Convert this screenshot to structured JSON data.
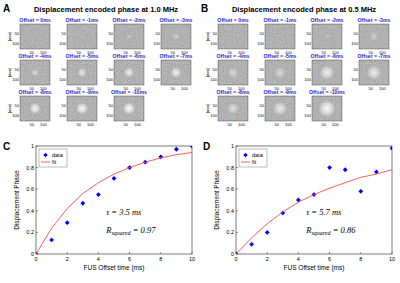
{
  "image_panels": [
    {
      "panel_label": "A",
      "title": "Displacement encoded phase at 1.0 MHz",
      "offset_labels": [
        "Offset = 0ms",
        "Offset = -1ms",
        "Offset = -2ms",
        "Offset = -3ms",
        "Offset = -4ms",
        "Offset = -5ms",
        "Offset = -6ms",
        "Offset = -7ms",
        "Offset = -8ms",
        "Offset = -9ms",
        "Offset = -10ms"
      ],
      "axis_label": "[mm]",
      "xlim": [
        0,
        128
      ],
      "ylim": [
        0,
        128
      ],
      "ticks": [
        50,
        100
      ]
    },
    {
      "panel_label": "B",
      "title": "Displacement encoded phase at 0.5 MHz",
      "offset_labels": [
        "Offset = 0ms",
        "Offset = -1ms",
        "Offset = -2ms",
        "Offset = -3ms",
        "Offset = -4ms",
        "Offset = -5ms",
        "Offset = -6ms",
        "Offset = -7ms",
        "Offset = -8ms",
        "Offset = -9ms",
        "Offset = -10ms"
      ],
      "axis_label": "[mm]",
      "xlim": [
        0,
        128
      ],
      "ylim": [
        0,
        128
      ],
      "ticks": [
        50,
        100
      ]
    }
  ],
  "chart_data": [
    {
      "type": "scatter",
      "panel_label": "C",
      "x": [
        0,
        1,
        2,
        3,
        4,
        5,
        6,
        7,
        8,
        9,
        10
      ],
      "series": [
        {
          "name": "data",
          "color": "#0000ff",
          "marker": "diamond",
          "values": [
            0,
            0.13,
            0.29,
            0.47,
            0.55,
            0.7,
            0.8,
            0.85,
            0.9,
            0.97,
            1.0
          ]
        },
        {
          "name": "fit",
          "type": "line",
          "color": "#f0504a",
          "line_style": "solid",
          "values": [
            0,
            0.24,
            0.42,
            0.56,
            0.66,
            0.74,
            0.8,
            0.85,
            0.89,
            0.92,
            0.94
          ]
        }
      ],
      "xlabel": "FUS Offset time (ms)",
      "ylabel": "Displacement Phase",
      "xlim": [
        0,
        10
      ],
      "ylim": [
        0,
        1
      ],
      "xticks": [
        0,
        2,
        4,
        6,
        8,
        10
      ],
      "yticks": [
        0,
        0.2,
        0.4,
        0.6,
        0.8,
        1
      ],
      "grid": false,
      "legend": "top-left",
      "annotations": [
        {
          "text": "τ = 3.5 ms"
        },
        {
          "text": "R",
          "subscript": "squared",
          "suffix": " = 0.97"
        }
      ]
    },
    {
      "type": "scatter",
      "panel_label": "D",
      "x": [
        0,
        1,
        2,
        3,
        4,
        5,
        6,
        7,
        8,
        9,
        10
      ],
      "series": [
        {
          "name": "data",
          "color": "#0000ff",
          "marker": "diamond",
          "values": [
            0,
            0.09,
            0.2,
            0.38,
            0.5,
            0.55,
            0.8,
            0.78,
            0.58,
            0.76,
            0.98
          ]
        },
        {
          "name": "fit",
          "type": "line",
          "color": "#f0504a",
          "line_style": "solid",
          "values": [
            0,
            0.15,
            0.28,
            0.39,
            0.48,
            0.55,
            0.61,
            0.66,
            0.71,
            0.74,
            0.78
          ]
        }
      ],
      "xlabel": "FUS Offset time (ms)",
      "ylabel": "Displacement Phase",
      "xlim": [
        0,
        10
      ],
      "ylim": [
        0,
        1
      ],
      "xticks": [
        0,
        2,
        4,
        6,
        8,
        10
      ],
      "yticks": [
        0,
        0.2,
        0.4,
        0.6,
        0.8,
        1
      ],
      "grid": false,
      "legend": "top-left",
      "annotations": [
        {
          "text": "τ = 5.7 ms"
        },
        {
          "text": "R",
          "subscript": "squared",
          "suffix": " = 0.86"
        }
      ]
    }
  ]
}
